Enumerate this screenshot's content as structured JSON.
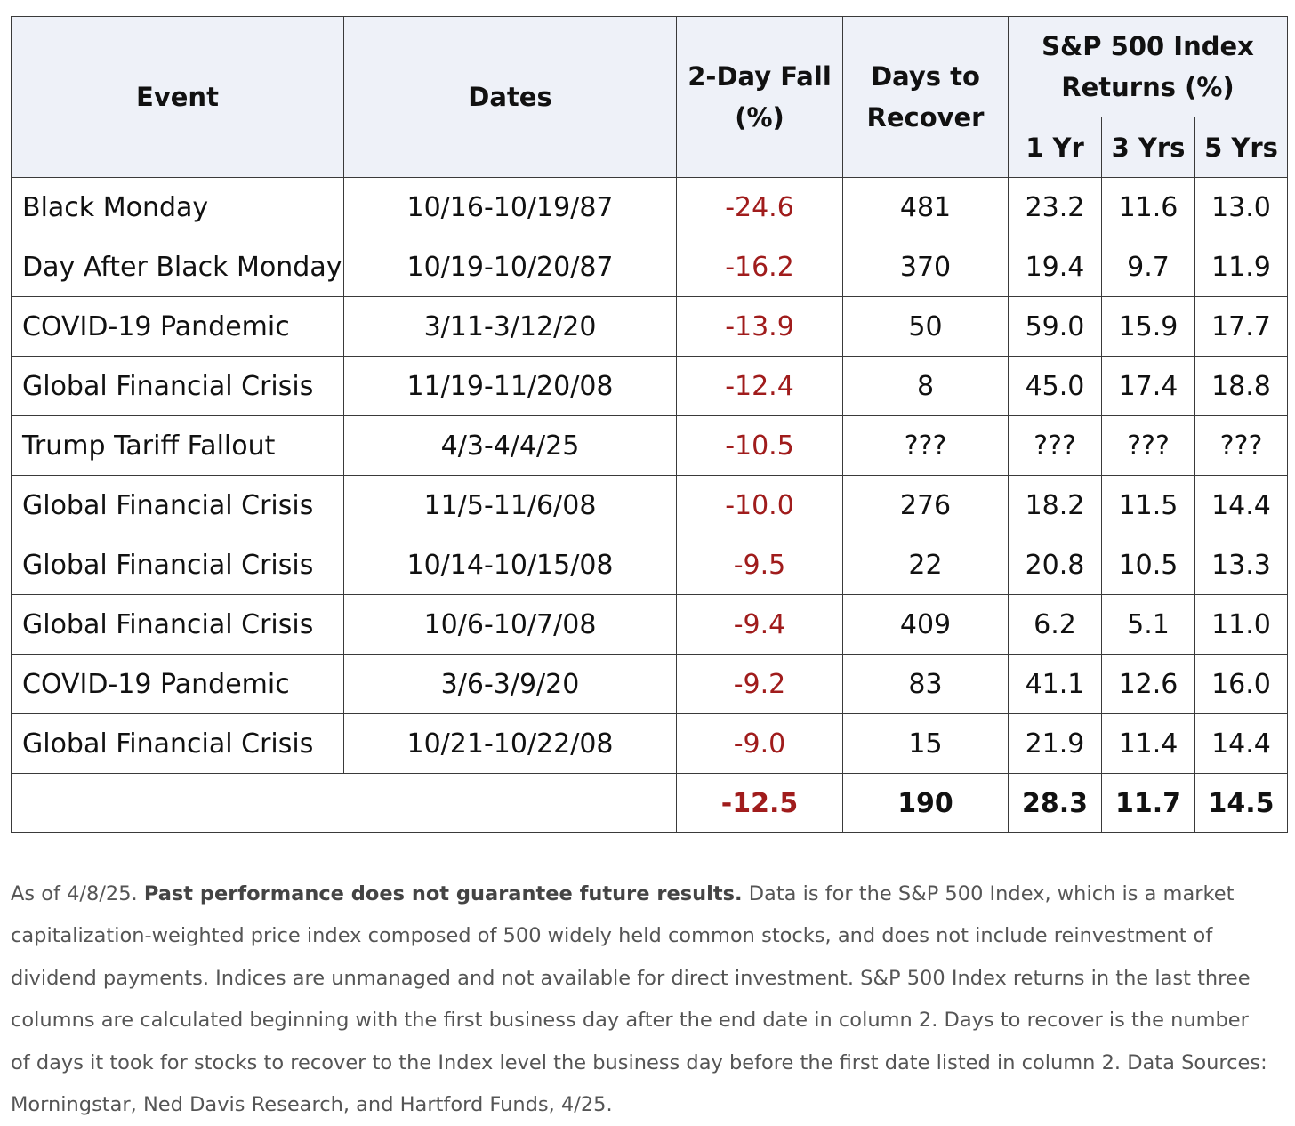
{
  "table": {
    "headers": {
      "event": "Event",
      "dates": "Dates",
      "fall_line1": "2-Day Fall",
      "fall_line2": "(%)",
      "recover_line1": "Days to",
      "recover_line2": "Recover",
      "returns_line1": "S&P 500 Index",
      "returns_line2": "Returns (%)",
      "yr1": "1 Yr",
      "yr3": "3 Yrs",
      "yr5": "5 Yrs"
    },
    "rows": [
      {
        "event": "Black Monday",
        "dates": "10/16-10/19/87",
        "fall": "-24.6",
        "recover": "481",
        "yr1": "23.2",
        "yr3": "11.6",
        "yr5": "13.0"
      },
      {
        "event": "Day After Black Monday",
        "dates": "10/19-10/20/87",
        "fall": "-16.2",
        "recover": "370",
        "yr1": "19.4",
        "yr3": "9.7",
        "yr5": "11.9"
      },
      {
        "event": "COVID-19 Pandemic",
        "dates": "3/11-3/12/20",
        "fall": "-13.9",
        "recover": "50",
        "yr1": "59.0",
        "yr3": "15.9",
        "yr5": "17.7"
      },
      {
        "event": "Global Financial Crisis",
        "dates": "11/19-11/20/08",
        "fall": "-12.4",
        "recover": "8",
        "yr1": "45.0",
        "yr3": "17.4",
        "yr5": "18.8"
      },
      {
        "event": "Trump Tariff Fallout",
        "dates": "4/3-4/4/25",
        "fall": "-10.5",
        "recover": "???",
        "yr1": "???",
        "yr3": "???",
        "yr5": "???"
      },
      {
        "event": "Global Financial Crisis",
        "dates": "11/5-11/6/08",
        "fall": "-10.0",
        "recover": "276",
        "yr1": "18.2",
        "yr3": "11.5",
        "yr5": "14.4"
      },
      {
        "event": "Global Financial Crisis",
        "dates": "10/14-10/15/08",
        "fall": "-9.5",
        "recover": "22",
        "yr1": "20.8",
        "yr3": "10.5",
        "yr5": "13.3"
      },
      {
        "event": "Global Financial Crisis",
        "dates": "10/6-10/7/08",
        "fall": "-9.4",
        "recover": "409",
        "yr1": "6.2",
        "yr3": "5.1",
        "yr5": "11.0"
      },
      {
        "event": "COVID-19 Pandemic",
        "dates": "3/6-3/9/20",
        "fall": "-9.2",
        "recover": "83",
        "yr1": "41.1",
        "yr3": "12.6",
        "yr5": "16.0"
      },
      {
        "event": "Global Financial Crisis",
        "dates": "10/21-10/22/08",
        "fall": "-9.0",
        "recover": "15",
        "yr1": "21.9",
        "yr3": "11.4",
        "yr5": "14.4"
      }
    ],
    "average": {
      "fall": "-12.5",
      "recover": "190",
      "yr1": "28.3",
      "yr3": "11.7",
      "yr5": "14.5"
    }
  },
  "colors": {
    "negative": "#a01c1c",
    "header_bg": "#eef1f8",
    "note_text": "#555555"
  },
  "notes": {
    "lead": "As of 4/8/25.",
    "bold": "Past performance does not guarantee future results.",
    "body": "Data is for the S&P 500 Index, which is a market capitalization-weighted price index composed of 500 widely held common stocks, and does not include reinvestment of dividend payments. Indices are unmanaged and not available for direct investment. S&P 500 Index returns in the last three columns are calculated beginning with the first business day after the end date in column 2. Days to recover is the number of days it took for stocks to recover to the Index level the business day before the first date listed in column 2. Data Sources: Morningstar, Ned Davis Research, and Hartford Funds, 4/25."
  }
}
